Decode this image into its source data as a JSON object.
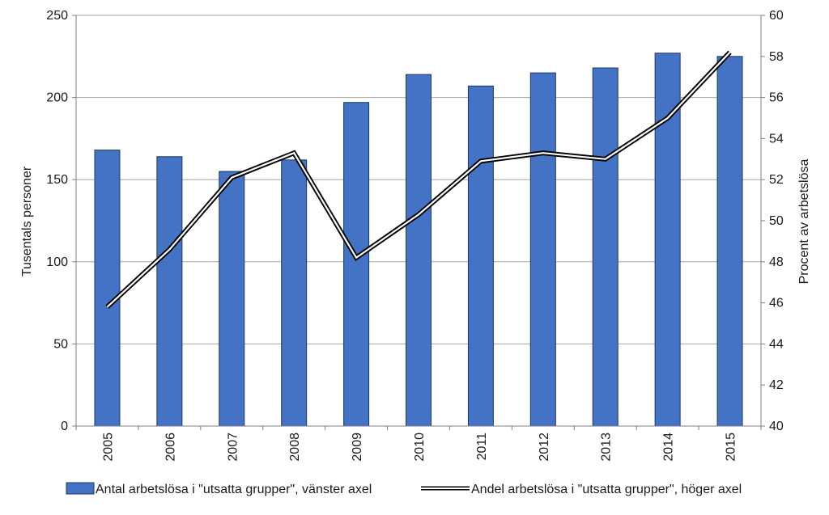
{
  "chart_data": {
    "type": "bar",
    "categories": [
      "2005",
      "2006",
      "2007",
      "2008",
      "2009",
      "2010",
      "2011",
      "2012",
      "2013",
      "2014",
      "2015"
    ],
    "series": [
      {
        "name": "Antal arbetslösa  i \"utsatta grupper\", vänster axel",
        "type": "bar",
        "axis": "left",
        "values": [
          168,
          164,
          155,
          162,
          197,
          214,
          207,
          215,
          218,
          227,
          225
        ]
      },
      {
        "name": "Andel arbetslösa i \"utsatta grupper\", höger axel",
        "type": "line",
        "axis": "right",
        "values": [
          45.8,
          48.6,
          52.1,
          53.3,
          48.2,
          50.3,
          52.9,
          53.3,
          53.0,
          55.0,
          58.2
        ]
      }
    ],
    "ylabel_left": "Tusentals personer",
    "ylabel_right": "Procent av arbetslösa",
    "ylim_left": [
      0,
      250
    ],
    "yticks_left": [
      0,
      50,
      100,
      150,
      200,
      250
    ],
    "ylim_right": [
      40,
      60
    ],
    "yticks_right": [
      40,
      42,
      44,
      46,
      48,
      50,
      52,
      54,
      56,
      58,
      60
    ],
    "grid": true,
    "legend_position": "bottom",
    "colors": {
      "bar": "#4472C4",
      "bar_edge": "#1F3864",
      "line_outer": "#000000",
      "line_inner": "#ffffff",
      "grid": "#a6a6a6"
    }
  }
}
